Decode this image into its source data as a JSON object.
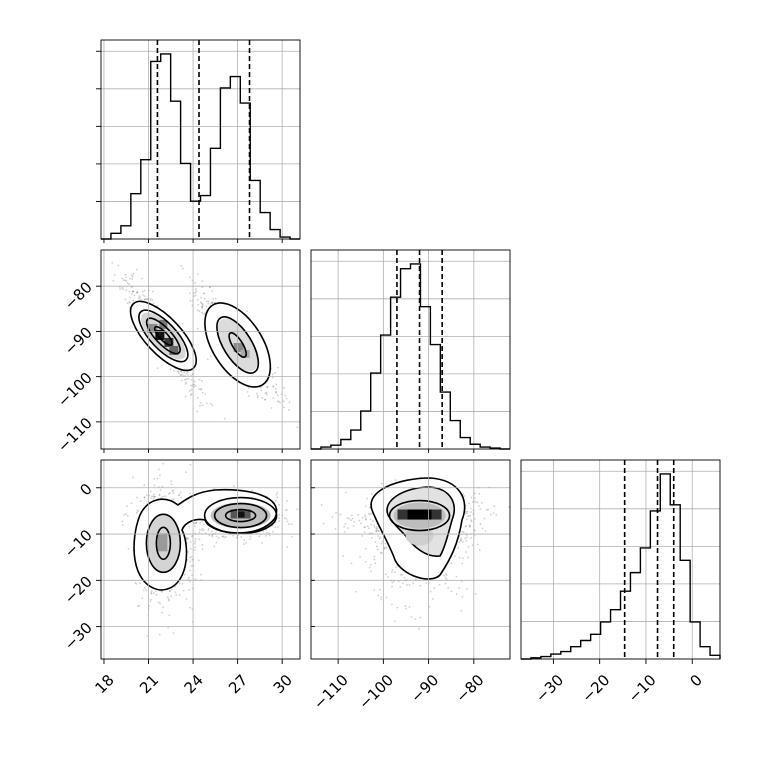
{
  "chart_data": {
    "type": "corner",
    "parameters": [
      {
        "name": "",
        "range": [
          17.8,
          31.2
        ],
        "ticks": [
          18,
          21,
          24,
          27,
          30
        ],
        "quantiles": [
          21.6,
          24.4,
          27.8
        ]
      },
      {
        "name": "",
        "range": [
          -116,
          -72
        ],
        "ticks": [
          -110,
          -100,
          -90,
          -80
        ],
        "quantiles": [
          -97,
          -92,
          -87
        ]
      },
      {
        "name": "",
        "range": [
          -37,
          6
        ],
        "ticks": [
          -30,
          -20,
          -10,
          0
        ],
        "quantiles": [
          -14.6,
          -7.5,
          -4
        ]
      }
    ],
    "tick_labels": {
      "p0": [
        "18",
        "21",
        "24",
        "27",
        "30"
      ],
      "p1": [
        "−110",
        "−100",
        "−90",
        "−80"
      ],
      "p2": [
        "−30",
        "−20",
        "−10",
        "0"
      ]
    },
    "histograms": [
      {
        "param": 0,
        "counts": [
          0,
          0.3,
          0.7,
          2.4,
          4.2,
          9.4,
          9.8,
          7.3,
          4,
          2,
          2.3,
          4.8,
          8,
          8.6,
          7.2,
          3.1,
          1.4,
          0.5,
          0.1,
          0
        ]
      },
      {
        "param": 1,
        "counts": [
          0,
          0.2,
          0.4,
          1,
          2,
          4,
          8,
          12,
          16,
          19,
          19.5,
          15,
          11,
          6,
          3,
          1.2,
          0.5,
          0.2,
          0.1,
          0
        ]
      },
      {
        "param": 2,
        "counts": [
          0,
          0.1,
          0.2,
          0.4,
          0.6,
          1,
          1.5,
          2,
          3,
          4,
          5.5,
          7,
          9,
          12,
          15,
          12.5,
          8,
          3,
          1,
          0.3
        ]
      }
    ],
    "grid": true,
    "colors": {
      "line": "#000000",
      "grid": "#b0b0b0",
      "points": "#555555"
    }
  }
}
